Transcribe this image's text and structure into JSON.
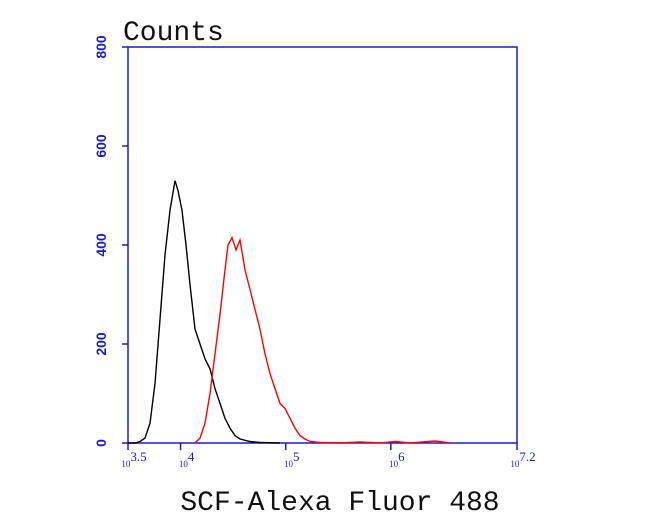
{
  "chart_data": {
    "type": "line",
    "x_label": "SCF-Alexa Fluor 488",
    "y_label": "Counts",
    "xscale": "log",
    "xlim": [
      3162.28,
      15848931.92
    ],
    "xticks": [
      {
        "value": 3162.28,
        "label": "10^3.5"
      },
      {
        "value": 10000,
        "label": "10^4"
      },
      {
        "value": 100000,
        "label": "10^5"
      },
      {
        "value": 1000000,
        "label": "10^6"
      },
      {
        "value": 15848931.92,
        "label": "10^7.2"
      }
    ],
    "ylim": [
      0,
      800
    ],
    "yticks": [
      0,
      200,
      400,
      600,
      800
    ],
    "axis_color": "#1a1ad0",
    "series": [
      {
        "color": "#000000",
        "x": [
          3162,
          3687,
          4113,
          4588,
          5120,
          5712,
          6374,
          7111,
          7935,
          8851,
          9454,
          10318,
          11262,
          12294,
          13716,
          15301,
          17077,
          19055,
          21262,
          23714,
          26458,
          29519,
          32940,
          36752,
          45754,
          56954,
          88265
        ],
        "values": [
          0,
          0,
          3,
          10,
          40,
          120,
          250,
          380,
          470,
          530,
          510,
          470,
          400,
          320,
          230,
          200,
          170,
          150,
          110,
          80,
          50,
          30,
          15,
          8,
          3,
          1,
          0
        ]
      },
      {
        "color": "#ff0000",
        "x": [
          13716,
          15301,
          17077,
          19055,
          21262,
          23714,
          26458,
          28256,
          30852,
          33668,
          36752,
          41002,
          45754,
          51050,
          56954,
          63538,
          70893,
          79086,
          88265,
          98450,
          109848,
          122563,
          136772,
          152580,
          170216,
          211911,
          328480,
          509005,
          788657,
          1095296,
          1521370,
          2630268,
          3653000
        ],
        "values": [
          0,
          10,
          40,
          100,
          180,
          260,
          350,
          400,
          415,
          390,
          410,
          350,
          310,
          270,
          230,
          180,
          140,
          110,
          80,
          70,
          50,
          30,
          15,
          8,
          3,
          1,
          0,
          2,
          0,
          3,
          0,
          4,
          0
        ]
      }
    ]
  }
}
